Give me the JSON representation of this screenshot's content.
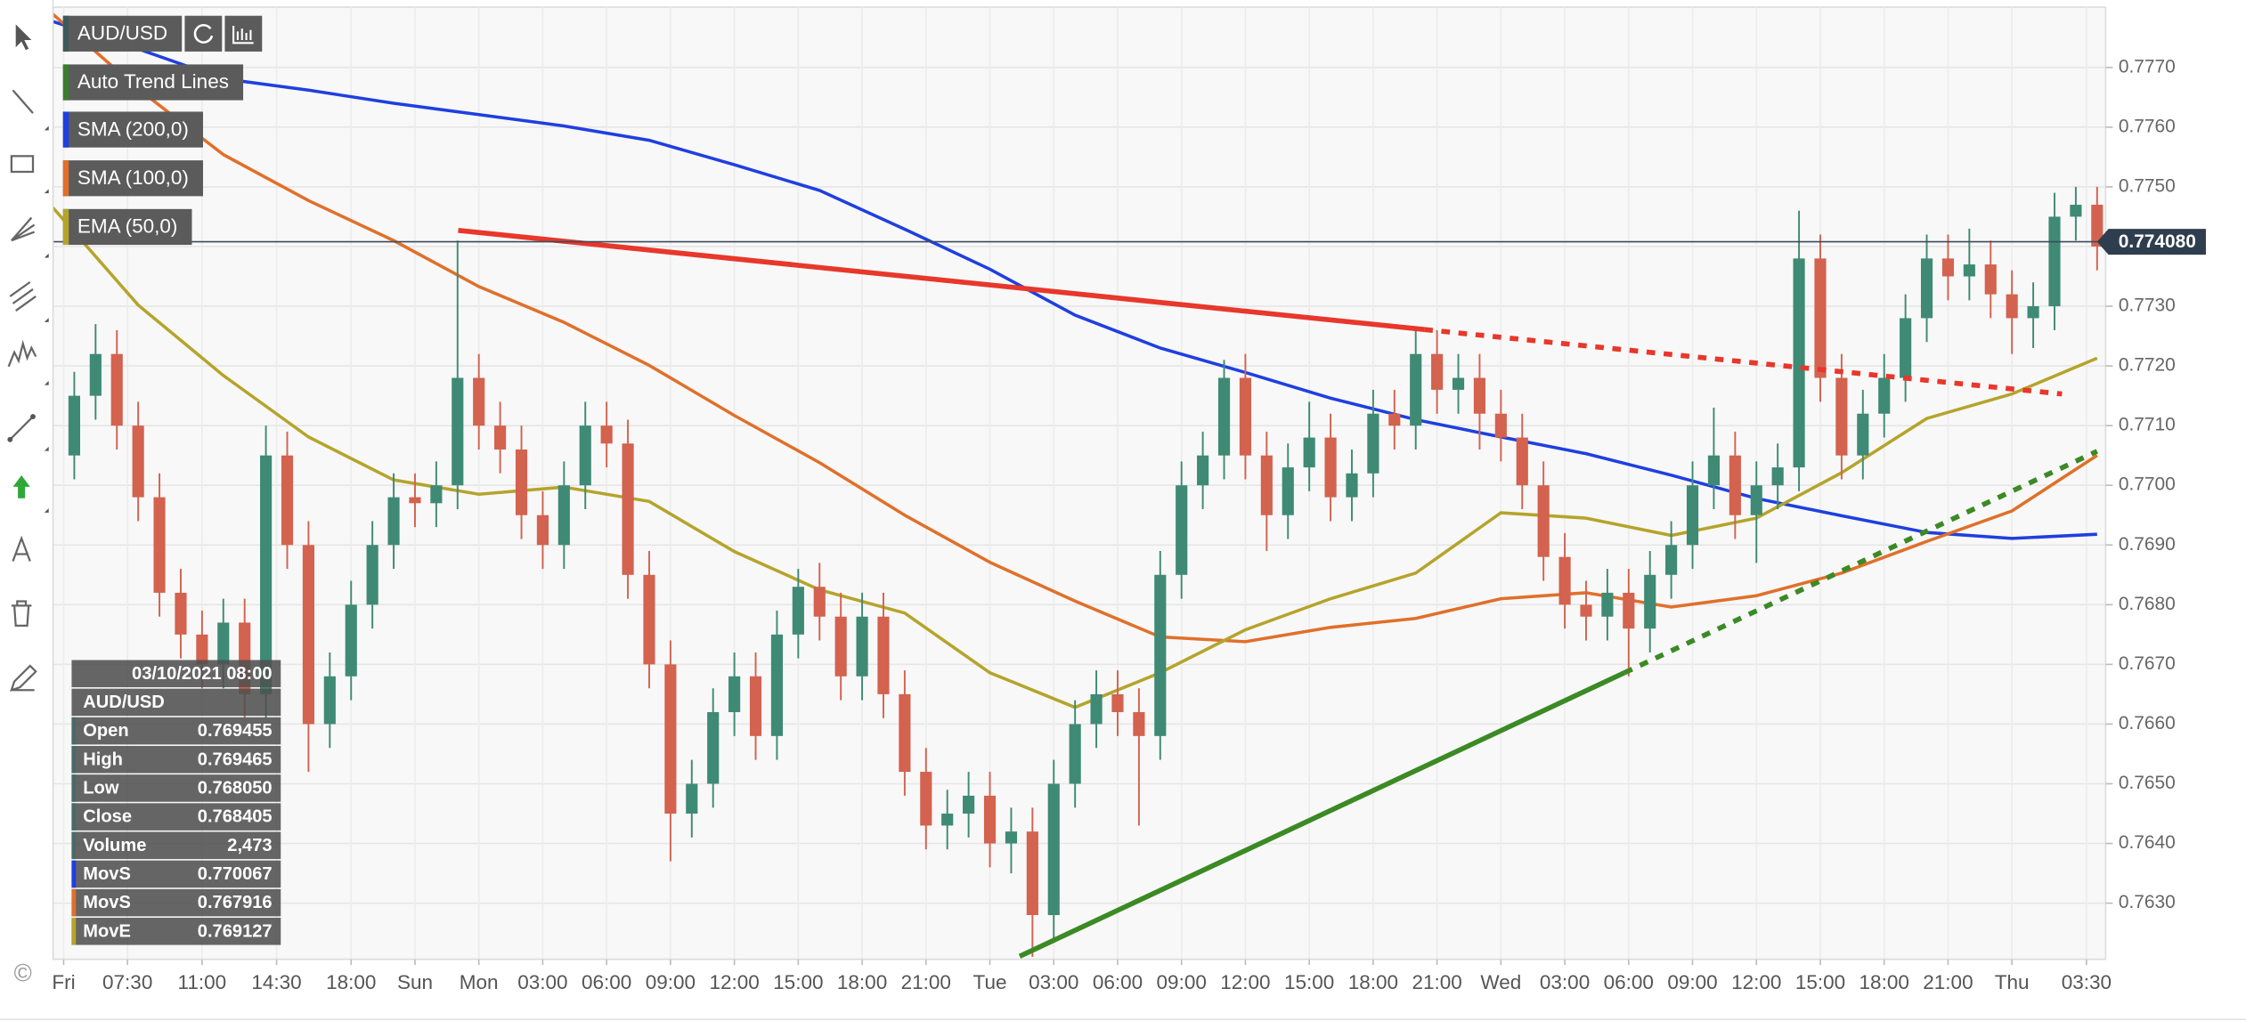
{
  "chart_data": {
    "type": "candlestick",
    "symbol": "AUD/USD",
    "up_color": "#3f8a74",
    "down_color": "#d3624f",
    "x": [
      1,
      2,
      3,
      4,
      5,
      6,
      7,
      8,
      9,
      10,
      11,
      12,
      13,
      14,
      15,
      16,
      17,
      18,
      19,
      20,
      21,
      22,
      23,
      24,
      25,
      26,
      27,
      28,
      29,
      30,
      31,
      32,
      33,
      34,
      35,
      36,
      37,
      38,
      39,
      40,
      41,
      42,
      43,
      44,
      45,
      46,
      47,
      48,
      49,
      50,
      51,
      52,
      53,
      54,
      55,
      56,
      57,
      58,
      59,
      60,
      61,
      62,
      63,
      64,
      65,
      66,
      67,
      68,
      69,
      70,
      71,
      72,
      73,
      74,
      75,
      76,
      77,
      78,
      79,
      80,
      81,
      82,
      83,
      84,
      85,
      86,
      87,
      88,
      89,
      90,
      91,
      92,
      93,
      94,
      95,
      96
    ],
    "open": [
      0.7705,
      0.7715,
      0.7722,
      0.771,
      0.7698,
      0.7682,
      0.7675,
      0.767,
      0.7677,
      0.7665,
      0.7705,
      0.769,
      0.766,
      0.7668,
      0.768,
      0.769,
      0.7698,
      0.7697,
      0.77,
      0.7718,
      0.771,
      0.7706,
      0.7695,
      0.769,
      0.77,
      0.771,
      0.7707,
      0.7685,
      0.767,
      0.7645,
      0.765,
      0.7662,
      0.7668,
      0.7658,
      0.7675,
      0.7683,
      0.7678,
      0.7668,
      0.7678,
      0.7665,
      0.7652,
      0.7643,
      0.7645,
      0.7648,
      0.764,
      0.7642,
      0.7628,
      0.765,
      0.766,
      0.7665,
      0.7662,
      0.7658,
      0.7685,
      0.77,
      0.7705,
      0.7718,
      0.7705,
      0.7695,
      0.7703,
      0.7708,
      0.7698,
      0.7702,
      0.7712,
      0.771,
      0.7722,
      0.7716,
      0.7718,
      0.7712,
      0.7708,
      0.77,
      0.7688,
      0.768,
      0.7678,
      0.7682,
      0.7676,
      0.7685,
      0.769,
      0.77,
      0.7705,
      0.7695,
      0.77,
      0.7703,
      0.7738,
      0.7718,
      0.7705,
      0.7712,
      0.7718,
      0.7728,
      0.7738,
      0.7735,
      0.7737,
      0.7732,
      0.7728,
      0.773,
      0.7745,
      0.7747
    ],
    "high": [
      0.7719,
      0.7727,
      0.7726,
      0.7714,
      0.7702,
      0.7686,
      0.7679,
      0.7681,
      0.7681,
      0.771,
      0.7709,
      0.7694,
      0.7672,
      0.7684,
      0.7694,
      0.7702,
      0.7702,
      0.7704,
      0.7741,
      0.7722,
      0.7714,
      0.771,
      0.7699,
      0.7704,
      0.7714,
      0.7714,
      0.7711,
      0.7689,
      0.7674,
      0.7654,
      0.7666,
      0.7672,
      0.7672,
      0.7679,
      0.7686,
      0.7687,
      0.7682,
      0.7682,
      0.7682,
      0.7669,
      0.7656,
      0.7649,
      0.7652,
      0.7652,
      0.7646,
      0.7646,
      0.7654,
      0.7664,
      0.7669,
      0.7669,
      0.7666,
      0.7689,
      0.7704,
      0.7709,
      0.7721,
      0.7722,
      0.7709,
      0.7707,
      0.7714,
      0.7712,
      0.7706,
      0.7716,
      0.7716,
      0.7726,
      0.7726,
      0.7722,
      0.7722,
      0.7716,
      0.7712,
      0.7704,
      0.7692,
      0.7684,
      0.7686,
      0.7686,
      0.7689,
      0.7694,
      0.7704,
      0.7713,
      0.7709,
      0.7704,
      0.7707,
      0.7746,
      0.7742,
      0.7722,
      0.7716,
      0.7722,
      0.7732,
      0.7742,
      0.7742,
      0.7743,
      0.7741,
      0.7736,
      0.7734,
      0.7749,
      0.775,
      0.775
    ],
    "low": [
      0.7701,
      0.7711,
      0.7706,
      0.7694,
      0.7678,
      0.7671,
      0.7666,
      0.7666,
      0.7661,
      0.7661,
      0.7686,
      0.7652,
      0.7656,
      0.7664,
      0.7676,
      0.7686,
      0.7693,
      0.7693,
      0.7696,
      0.7706,
      0.7702,
      0.7691,
      0.7686,
      0.7686,
      0.7696,
      0.7703,
      0.7681,
      0.7666,
      0.7637,
      0.7641,
      0.7646,
      0.7658,
      0.7654,
      0.7654,
      0.7671,
      0.7674,
      0.7664,
      0.7664,
      0.7661,
      0.7648,
      0.7639,
      0.7639,
      0.7641,
      0.7636,
      0.7635,
      0.7621,
      0.7624,
      0.7646,
      0.7656,
      0.7658,
      0.7643,
      0.7654,
      0.7681,
      0.7696,
      0.7701,
      0.7701,
      0.7689,
      0.7691,
      0.7699,
      0.7694,
      0.7694,
      0.7698,
      0.7706,
      0.7706,
      0.7712,
      0.7712,
      0.7706,
      0.7704,
      0.7696,
      0.7684,
      0.7676,
      0.7674,
      0.7674,
      0.7668,
      0.7672,
      0.7681,
      0.7686,
      0.7696,
      0.7691,
      0.7687,
      0.7696,
      0.7699,
      0.7714,
      0.7701,
      0.7701,
      0.7708,
      0.7714,
      0.7724,
      0.7731,
      0.7731,
      0.7728,
      0.7722,
      0.7723,
      0.7726,
      0.7741,
      0.7736
    ],
    "close": [
      0.7715,
      0.7722,
      0.771,
      0.7698,
      0.7682,
      0.7675,
      0.767,
      0.7677,
      0.7665,
      0.7705,
      0.769,
      0.766,
      0.7668,
      0.768,
      0.769,
      0.7698,
      0.7697,
      0.77,
      0.7718,
      0.771,
      0.7706,
      0.7695,
      0.769,
      0.77,
      0.771,
      0.7707,
      0.7685,
      0.767,
      0.7645,
      0.765,
      0.7662,
      0.7668,
      0.7658,
      0.7675,
      0.7683,
      0.7678,
      0.7668,
      0.7678,
      0.7665,
      0.7652,
      0.7643,
      0.7645,
      0.7648,
      0.764,
      0.7642,
      0.7628,
      0.765,
      0.766,
      0.7665,
      0.7662,
      0.7658,
      0.7685,
      0.77,
      0.7705,
      0.7718,
      0.7705,
      0.7695,
      0.7703,
      0.7708,
      0.7698,
      0.7702,
      0.7712,
      0.771,
      0.7722,
      0.7716,
      0.7718,
      0.7712,
      0.7708,
      0.77,
      0.7688,
      0.768,
      0.7678,
      0.7682,
      0.7676,
      0.7685,
      0.769,
      0.77,
      0.7705,
      0.7695,
      0.77,
      0.7703,
      0.7738,
      0.7718,
      0.7705,
      0.7712,
      0.7718,
      0.7728,
      0.7738,
      0.7735,
      0.7737,
      0.7732,
      0.7728,
      0.773,
      0.7745,
      0.7747,
      0.774
    ],
    "xlim": [
      0,
      96.4
    ],
    "ylim": [
      0.76206,
      0.77801
    ],
    "grid": true,
    "xticks": [
      {
        "value": 0.5,
        "label": "Fri"
      },
      {
        "value": 3.5,
        "label": "07:30"
      },
      {
        "value": 7,
        "label": "11:00"
      },
      {
        "value": 10.5,
        "label": "14:30"
      },
      {
        "value": 14,
        "label": "18:00"
      },
      {
        "value": 17,
        "label": "Sun"
      },
      {
        "value": 20,
        "label": "Mon"
      },
      {
        "value": 23,
        "label": "03:00"
      },
      {
        "value": 26,
        "label": "06:00"
      },
      {
        "value": 29,
        "label": "09:00"
      },
      {
        "value": 32,
        "label": "12:00"
      },
      {
        "value": 35,
        "label": "15:00"
      },
      {
        "value": 38,
        "label": "18:00"
      },
      {
        "value": 41,
        "label": "21:00"
      },
      {
        "value": 44,
        "label": "Tue"
      },
      {
        "value": 47,
        "label": "03:00"
      },
      {
        "value": 50,
        "label": "06:00"
      },
      {
        "value": 53,
        "label": "09:00"
      },
      {
        "value": 56,
        "label": "12:00"
      },
      {
        "value": 59,
        "label": "15:00"
      },
      {
        "value": 62,
        "label": "18:00"
      },
      {
        "value": 65,
        "label": "21:00"
      },
      {
        "value": 68,
        "label": "Wed"
      },
      {
        "value": 71,
        "label": "03:00"
      },
      {
        "value": 74,
        "label": "06:00"
      },
      {
        "value": 77,
        "label": "09:00"
      },
      {
        "value": 80,
        "label": "12:00"
      },
      {
        "value": 83,
        "label": "15:00"
      },
      {
        "value": 86,
        "label": "18:00"
      },
      {
        "value": 89,
        "label": "21:00"
      },
      {
        "value": 92,
        "label": "Thu"
      },
      {
        "value": 95.5,
        "label": "03:30"
      }
    ],
    "yticks": [
      {
        "value": 0.763,
        "label": "0.7630"
      },
      {
        "value": 0.764,
        "label": "0.7640"
      },
      {
        "value": 0.765,
        "label": "0.7650"
      },
      {
        "value": 0.766,
        "label": "0.7660"
      },
      {
        "value": 0.767,
        "label": "0.7670"
      },
      {
        "value": 0.768,
        "label": "0.7680"
      },
      {
        "value": 0.769,
        "label": "0.7690"
      },
      {
        "value": 0.77,
        "label": "0.7700"
      },
      {
        "value": 0.771,
        "label": "0.7710"
      },
      {
        "value": 0.772,
        "label": "0.7720"
      },
      {
        "value": 0.773,
        "label": "0.7730"
      },
      {
        "value": 0.774,
        "label": "0.7740"
      },
      {
        "value": 0.775,
        "label": "0.7750"
      },
      {
        "value": 0.776,
        "label": "0.7760"
      },
      {
        "value": 0.777,
        "label": "0.7770"
      }
    ],
    "last_price": {
      "value": 0.77408,
      "label": "0.774080"
    },
    "series": [
      {
        "name": "SMA (200,0)",
        "color": "#1f3fe0",
        "x": [
          0,
          4,
          8,
          12,
          16,
          20,
          24,
          28,
          32,
          36,
          40,
          44,
          48,
          52,
          56,
          60,
          64,
          68,
          72,
          76,
          80,
          84,
          88,
          92,
          96
        ],
        "values": [
          0.77777,
          0.77731,
          0.77681,
          0.77662,
          0.7764,
          0.77621,
          0.77602,
          0.77578,
          0.77537,
          0.77494,
          0.77429,
          0.77362,
          0.77285,
          0.7723,
          0.77189,
          0.77146,
          0.7711,
          0.77081,
          0.77053,
          0.77017,
          0.76978,
          0.76949,
          0.76921,
          0.76911,
          0.76918
        ]
      },
      {
        "name": "SMA (100,0)",
        "color": "#e0702a",
        "x": [
          0,
          4,
          8,
          12,
          16,
          20,
          24,
          28,
          32,
          36,
          40,
          44,
          48,
          52,
          56,
          60,
          64,
          68,
          72,
          76,
          80,
          84,
          88,
          92,
          96
        ],
        "values": [
          0.77789,
          0.77664,
          0.77554,
          0.77477,
          0.7741,
          0.77333,
          0.77273,
          0.77201,
          0.77117,
          0.77038,
          0.7695,
          0.76871,
          0.76806,
          0.76746,
          0.76738,
          0.76762,
          0.76777,
          0.7681,
          0.7682,
          0.76796,
          0.76815,
          0.76853,
          0.76906,
          0.76957,
          0.7705
        ]
      },
      {
        "name": "EMA (50,0)",
        "color": "#b5a42c",
        "x": [
          0,
          4,
          8,
          12,
          16,
          20,
          24,
          28,
          32,
          36,
          40,
          44,
          48,
          52,
          56,
          60,
          64,
          68,
          72,
          76,
          80,
          84,
          88,
          92,
          96
        ],
        "values": [
          0.77465,
          0.77302,
          0.77184,
          0.77081,
          0.77009,
          0.76985,
          0.76997,
          0.76973,
          0.76889,
          0.76825,
          0.76786,
          0.76686,
          0.76628,
          0.76686,
          0.76758,
          0.7681,
          0.76853,
          0.76954,
          0.76945,
          0.76916,
          0.76945,
          0.77021,
          0.77112,
          0.77153,
          0.77213
        ]
      }
    ],
    "trend_lines": {
      "name": "Auto Trend Lines",
      "color": "#3a7d2c",
      "lines": [
        {
          "color": "#e8372b",
          "segments": [
            {
              "style": "solid",
              "x": [
                19.03,
                64.4
              ],
              "values": [
                0.77427,
                0.77261
              ]
            },
            {
              "style": "dashed",
              "x": [
                64.4,
                94.35
              ],
              "values": [
                0.77261,
                0.77153
              ]
            }
          ]
        },
        {
          "color": "#3b8a24",
          "segments": [
            {
              "style": "solid",
              "x": [
                45.4,
                73.8
              ],
              "values": [
                0.76211,
                0.76686
              ]
            },
            {
              "style": "dashed",
              "x": [
                73.8,
                96
              ],
              "values": [
                0.76686,
                0.77057
              ]
            }
          ]
        }
      ]
    }
  },
  "info_panel": {
    "date": "03/10/2021 08:00",
    "symbol": "AUD/USD",
    "rows": [
      {
        "label": "Open",
        "value": "0.769455",
        "color": "#4a6a66"
      },
      {
        "label": "High",
        "value": "0.769465",
        "color": "#4a6a66"
      },
      {
        "label": "Low",
        "value": "0.768050",
        "color": "#4a6a66"
      },
      {
        "label": "Close",
        "value": "0.768405",
        "color": "#4a6a66"
      },
      {
        "label": "Volume",
        "value": "2,473",
        "color": "#4a6a66"
      },
      {
        "label": "MovS",
        "value": "0.770067",
        "color": "#1f3fe0"
      },
      {
        "label": "MovS",
        "value": "0.767916",
        "color": "#e0702a"
      },
      {
        "label": "MovE",
        "value": "0.769127",
        "color": "#b5a42c"
      }
    ]
  },
  "copyright": "©"
}
